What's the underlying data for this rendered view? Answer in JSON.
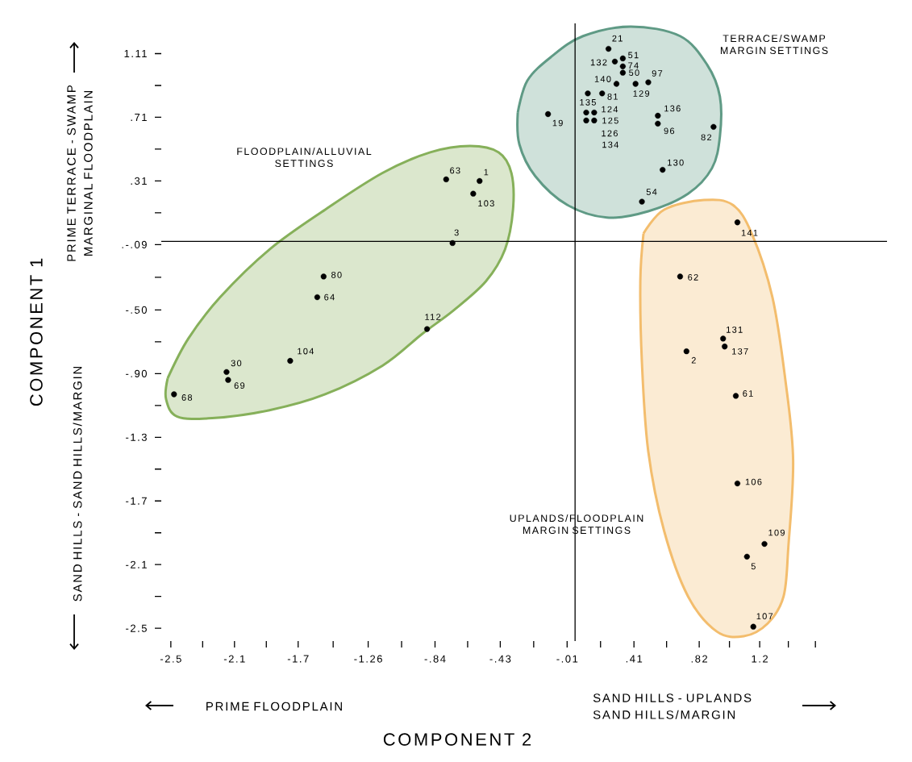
{
  "chart_data": {
    "type": "scatter",
    "xlabel": "COMPONENT 2",
    "ylabel": "COMPONENT 1",
    "xlim": [
      -2.56,
      2.0
    ],
    "ylim": [
      -2.58,
      1.3
    ],
    "xticks": [
      {
        "value": -2.5,
        "label": "-2.5"
      },
      {
        "value": -2.3,
        "label": null
      },
      {
        "value": -2.1,
        "label": "-2.1"
      },
      {
        "value": -1.9,
        "label": null
      },
      {
        "value": -1.7,
        "label": "-1.7"
      },
      {
        "value": -1.48,
        "label": null
      },
      {
        "value": -1.26,
        "label": "-1.26"
      },
      {
        "value": -1.05,
        "label": null
      },
      {
        "value": -0.84,
        "label": "-.84"
      },
      {
        "value": -0.635,
        "label": null
      },
      {
        "value": -0.43,
        "label": "-.43"
      },
      {
        "value": -0.22,
        "label": null
      },
      {
        "value": -0.01,
        "label": "-.01"
      },
      {
        "value": 0.2,
        "label": null
      },
      {
        "value": 0.41,
        "label": ".41"
      },
      {
        "value": 0.615,
        "label": null
      },
      {
        "value": 0.82,
        "label": ".82"
      },
      {
        "value": 1.01,
        "label": null
      },
      {
        "value": 1.2,
        "label": "1.2"
      },
      {
        "value": 1.38,
        "label": null
      },
      {
        "value": 1.55,
        "label": null
      }
    ],
    "yticks": [
      {
        "value": 1.11,
        "label": "1.11"
      },
      {
        "value": 0.91,
        "label": null
      },
      {
        "value": 0.71,
        "label": ".71"
      },
      {
        "value": 0.51,
        "label": null
      },
      {
        "value": 0.31,
        "label": ".31"
      },
      {
        "value": 0.11,
        "label": null
      },
      {
        "value": -0.09,
        "label": ".-.09"
      },
      {
        "value": -0.295,
        "label": null
      },
      {
        "value": -0.5,
        "label": "-.50"
      },
      {
        "value": -0.7,
        "label": null
      },
      {
        "value": -0.9,
        "label": "-.90"
      },
      {
        "value": -1.1,
        "label": null
      },
      {
        "value": -1.3,
        "label": "-1.3"
      },
      {
        "value": -1.5,
        "label": null
      },
      {
        "value": -1.7,
        "label": "-1.7"
      },
      {
        "value": -1.9,
        "label": null
      },
      {
        "value": -2.1,
        "label": "-2.1"
      },
      {
        "value": -2.3,
        "label": null
      },
      {
        "value": -2.5,
        "label": "-2.5"
      }
    ],
    "series": [
      {
        "type": "area",
        "color": "#86b05a",
        "x": [
          -2.52,
          -2.39,
          -2.19,
          -1.88,
          -1.53,
          -1.17,
          -0.87,
          -0.62,
          -0.44,
          -0.36,
          -0.35,
          -0.4,
          -0.52,
          -0.72,
          -0.92,
          -1.17,
          -1.53,
          -1.88,
          -2.24,
          -2.46,
          -2.53
        ],
        "values": [
          -0.93,
          -0.68,
          -0.42,
          -0.12,
          0.13,
          0.36,
          0.49,
          0.53,
          0.49,
          0.36,
          0.13,
          -0.12,
          -0.32,
          -0.5,
          -0.65,
          -0.85,
          -1.03,
          -1.13,
          -1.18,
          -1.17,
          -1.06
        ]
      },
      {
        "type": "area",
        "color": "#5f9a85",
        "x": [
          -0.32,
          -0.26,
          -0.11,
          0.09,
          0.39,
          0.7,
          0.87,
          0.95,
          0.95,
          0.9,
          0.75,
          0.5,
          0.24,
          -0.01,
          -0.21,
          -0.31
        ],
        "values": [
          0.74,
          0.94,
          1.09,
          1.22,
          1.28,
          1.22,
          1.04,
          0.84,
          0.59,
          0.39,
          0.23,
          0.12,
          0.08,
          0.16,
          0.34,
          0.54
        ]
      },
      {
        "type": "area",
        "color": "#f3bd6d",
        "x": [
          0.47,
          0.6,
          0.85,
          1.03,
          1.15,
          1.28,
          1.36,
          1.41,
          1.38,
          1.35,
          1.25,
          1.1,
          0.93,
          0.75,
          0.6,
          0.5,
          0.46,
          0.45
        ],
        "values": [
          -0.02,
          0.13,
          0.19,
          0.16,
          -0.02,
          -0.42,
          -0.93,
          -1.44,
          -1.99,
          -2.3,
          -2.47,
          -2.55,
          -2.52,
          -2.3,
          -1.89,
          -1.39,
          -0.83,
          -0.32
        ]
      },
      {
        "marker": "circle",
        "color": "#000000",
        "x": [
          0.25,
          0.29,
          0.34,
          0.34,
          0.34,
          0.3,
          0.42,
          0.5,
          0.12,
          0.21,
          0.11,
          0.16,
          0.11,
          0.16,
          0.56,
          0.56,
          -0.13,
          0.91,
          0.59,
          0.46,
          -0.77,
          -0.56,
          -0.6,
          -0.73,
          -1.54,
          -1.58,
          -0.89,
          -1.75,
          -2.15,
          -2.14,
          -2.48,
          1.06,
          0.7,
          0.97,
          0.98,
          0.74,
          1.05,
          1.06,
          1.23,
          1.12,
          1.16
        ],
        "values": [
          1.14,
          1.06,
          1.08,
          1.03,
          0.99,
          0.92,
          0.92,
          0.93,
          0.86,
          0.86,
          0.74,
          0.74,
          0.69,
          0.69,
          0.72,
          0.67,
          0.73,
          0.65,
          0.38,
          0.18,
          0.32,
          0.31,
          0.23,
          -0.08,
          -0.29,
          -0.42,
          -0.62,
          -0.82,
          -0.89,
          -0.94,
          -1.03,
          0.05,
          -0.29,
          -0.68,
          -0.73,
          -0.76,
          -1.04,
          -1.59,
          -1.97,
          -2.05,
          -2.49
        ]
      }
    ],
    "ref_lines": [
      {
        "axis": "x",
        "value": 0.04
      },
      {
        "axis": "y",
        "value": -0.07
      }
    ],
    "annotations": [
      {
        "text": "21",
        "x": 0.25,
        "y": 1.14
      },
      {
        "text": "132",
        "x": 0.29,
        "y": 1.06
      },
      {
        "text": "51",
        "x": 0.34,
        "y": 1.08
      },
      {
        "text": "74",
        "x": 0.34,
        "y": 1.03
      },
      {
        "text": "50",
        "x": 0.34,
        "y": 0.99
      },
      {
        "text": "140",
        "x": 0.3,
        "y": 0.92
      },
      {
        "text": "129",
        "x": 0.42,
        "y": 0.92
      },
      {
        "text": "97",
        "x": 0.5,
        "y": 0.93
      },
      {
        "text": "135",
        "x": 0.12,
        "y": 0.86
      },
      {
        "text": "81",
        "x": 0.21,
        "y": 0.86
      },
      {
        "text": "124",
        "x": 0.11,
        "y": 0.74
      },
      {
        "text": "125",
        "x": 0.16,
        "y": 0.74
      },
      {
        "text": "126",
        "x": 0.11,
        "y": 0.69
      },
      {
        "text": "134",
        "x": 0.16,
        "y": 0.69
      },
      {
        "text": "136",
        "x": 0.56,
        "y": 0.72
      },
      {
        "text": "96",
        "x": 0.56,
        "y": 0.67
      },
      {
        "text": "19",
        "x": -0.13,
        "y": 0.73
      },
      {
        "text": "82",
        "x": 0.91,
        "y": 0.65
      },
      {
        "text": "130",
        "x": 0.59,
        "y": 0.38
      },
      {
        "text": "54",
        "x": 0.46,
        "y": 0.18
      },
      {
        "text": "63",
        "x": -0.77,
        "y": 0.32
      },
      {
        "text": "1",
        "x": -0.56,
        "y": 0.31
      },
      {
        "text": "103",
        "x": -0.6,
        "y": 0.23
      },
      {
        "text": "3",
        "x": -0.73,
        "y": -0.08
      },
      {
        "text": "80",
        "x": -1.54,
        "y": -0.29
      },
      {
        "text": "64",
        "x": -1.58,
        "y": -0.42
      },
      {
        "text": "112",
        "x": -0.89,
        "y": -0.62
      },
      {
        "text": "104",
        "x": -1.75,
        "y": -0.82
      },
      {
        "text": "30",
        "x": -2.15,
        "y": -0.89
      },
      {
        "text": "69",
        "x": -2.14,
        "y": -0.94
      },
      {
        "text": "68",
        "x": -2.48,
        "y": -1.03
      },
      {
        "text": "141",
        "x": 1.06,
        "y": 0.05
      },
      {
        "text": "62",
        "x": 0.7,
        "y": -0.29
      },
      {
        "text": "131",
        "x": 0.97,
        "y": -0.68
      },
      {
        "text": "137",
        "x": 0.98,
        "y": -0.73
      },
      {
        "text": "2",
        "x": 0.74,
        "y": -0.76
      },
      {
        "text": "61",
        "x": 1.05,
        "y": -1.04
      },
      {
        "text": "106",
        "x": 1.06,
        "y": -1.59
      },
      {
        "text": "109",
        "x": 1.23,
        "y": -1.97
      },
      {
        "text": "5",
        "x": 1.12,
        "y": -2.05
      },
      {
        "text": "107",
        "x": 1.16,
        "y": -2.49
      },
      "FLOODPLAIN/ALLUVIAL SETTINGS",
      "TERRACE/SWAMP MARGIN SETTINGS",
      "UPLANDS/FLOODPLAIN MARGIN SETTINGS",
      "PRIME TERRACE - SWAMP MARGINAL FLOODPLAIN",
      "SAND HILLS - SAND HILLS/MARGIN",
      "PRIME FLOODPLAIN",
      "SAND HILLS - UPLANDS SAND HILLS/MARGIN"
    ]
  }
}
